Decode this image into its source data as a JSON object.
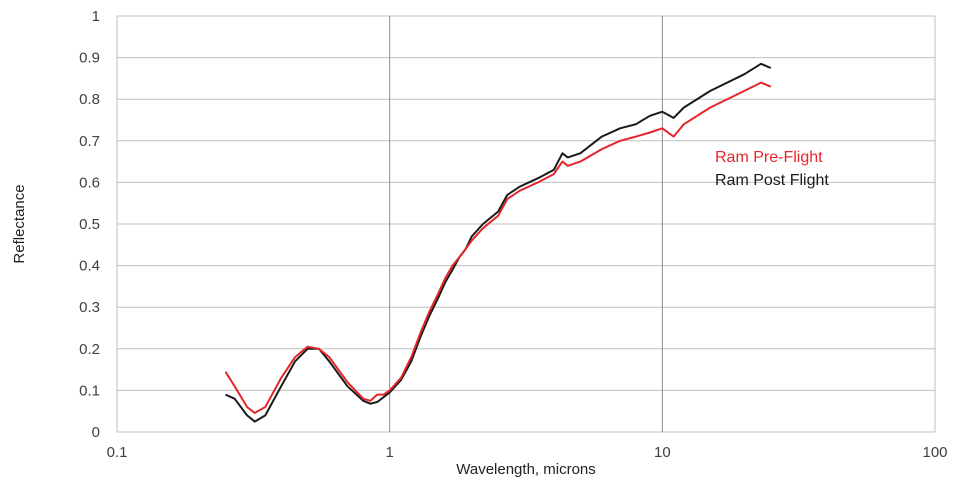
{
  "chart_data": {
    "type": "line",
    "title": "",
    "xlabel": "Wavelength, microns",
    "ylabel": "Reflectance",
    "x_scale": "log",
    "xlim": [
      0.1,
      100
    ],
    "ylim": [
      0,
      1
    ],
    "grid": true,
    "legend_position": "right",
    "x_ticks": [
      "0.1",
      "1",
      "10",
      "100"
    ],
    "y_ticks": [
      "0",
      "0.1",
      "0.2",
      "0.3",
      "0.4",
      "0.5",
      "0.6",
      "0.7",
      "0.8",
      "0.9",
      "1"
    ],
    "series": [
      {
        "name": "Ram Pre-Flight",
        "color": "#e3262b",
        "points": [
          [
            0.25,
            0.145
          ],
          [
            0.27,
            0.11
          ],
          [
            0.3,
            0.06
          ],
          [
            0.32,
            0.046
          ],
          [
            0.35,
            0.06
          ],
          [
            0.4,
            0.13
          ],
          [
            0.45,
            0.18
          ],
          [
            0.5,
            0.205
          ],
          [
            0.55,
            0.2
          ],
          [
            0.6,
            0.18
          ],
          [
            0.7,
            0.12
          ],
          [
            0.8,
            0.08
          ],
          [
            0.85,
            0.075
          ],
          [
            0.9,
            0.09
          ],
          [
            0.95,
            0.09
          ],
          [
            1.0,
            0.1
          ],
          [
            1.1,
            0.13
          ],
          [
            1.2,
            0.18
          ],
          [
            1.3,
            0.24
          ],
          [
            1.4,
            0.29
          ],
          [
            1.5,
            0.33
          ],
          [
            1.6,
            0.37
          ],
          [
            1.7,
            0.4
          ],
          [
            1.8,
            0.42
          ],
          [
            1.9,
            0.44
          ],
          [
            2.0,
            0.46
          ],
          [
            2.2,
            0.49
          ],
          [
            2.5,
            0.52
          ],
          [
            2.7,
            0.56
          ],
          [
            3.0,
            0.58
          ],
          [
            3.5,
            0.6
          ],
          [
            4.0,
            0.62
          ],
          [
            4.3,
            0.65
          ],
          [
            4.5,
            0.64
          ],
          [
            5.0,
            0.65
          ],
          [
            6.0,
            0.68
          ],
          [
            7.0,
            0.7
          ],
          [
            8.0,
            0.71
          ],
          [
            9.0,
            0.72
          ],
          [
            10.0,
            0.73
          ],
          [
            11.0,
            0.71
          ],
          [
            12.0,
            0.74
          ],
          [
            15.0,
            0.78
          ],
          [
            20.0,
            0.82
          ],
          [
            23.0,
            0.84
          ],
          [
            25.0,
            0.83
          ]
        ]
      },
      {
        "name": "Ram Post Flight",
        "color": "#1a1a1a",
        "points": [
          [
            0.25,
            0.09
          ],
          [
            0.27,
            0.08
          ],
          [
            0.3,
            0.04
          ],
          [
            0.32,
            0.025
          ],
          [
            0.35,
            0.04
          ],
          [
            0.4,
            0.11
          ],
          [
            0.45,
            0.17
          ],
          [
            0.5,
            0.2
          ],
          [
            0.55,
            0.2
          ],
          [
            0.6,
            0.17
          ],
          [
            0.7,
            0.11
          ],
          [
            0.8,
            0.075
          ],
          [
            0.85,
            0.068
          ],
          [
            0.9,
            0.072
          ],
          [
            1.0,
            0.095
          ],
          [
            1.1,
            0.125
          ],
          [
            1.2,
            0.17
          ],
          [
            1.3,
            0.23
          ],
          [
            1.4,
            0.28
          ],
          [
            1.5,
            0.32
          ],
          [
            1.6,
            0.36
          ],
          [
            1.7,
            0.39
          ],
          [
            1.8,
            0.42
          ],
          [
            1.9,
            0.44
          ],
          [
            2.0,
            0.47
          ],
          [
            2.2,
            0.5
          ],
          [
            2.5,
            0.53
          ],
          [
            2.7,
            0.57
          ],
          [
            3.0,
            0.59
          ],
          [
            3.5,
            0.61
          ],
          [
            4.0,
            0.63
          ],
          [
            4.3,
            0.67
          ],
          [
            4.5,
            0.66
          ],
          [
            5.0,
            0.67
          ],
          [
            6.0,
            0.71
          ],
          [
            7.0,
            0.73
          ],
          [
            8.0,
            0.74
          ],
          [
            9.0,
            0.76
          ],
          [
            10.0,
            0.77
          ],
          [
            11.0,
            0.755
          ],
          [
            12.0,
            0.78
          ],
          [
            15.0,
            0.82
          ],
          [
            20.0,
            0.86
          ],
          [
            23.0,
            0.885
          ],
          [
            25.0,
            0.875
          ]
        ]
      }
    ]
  }
}
